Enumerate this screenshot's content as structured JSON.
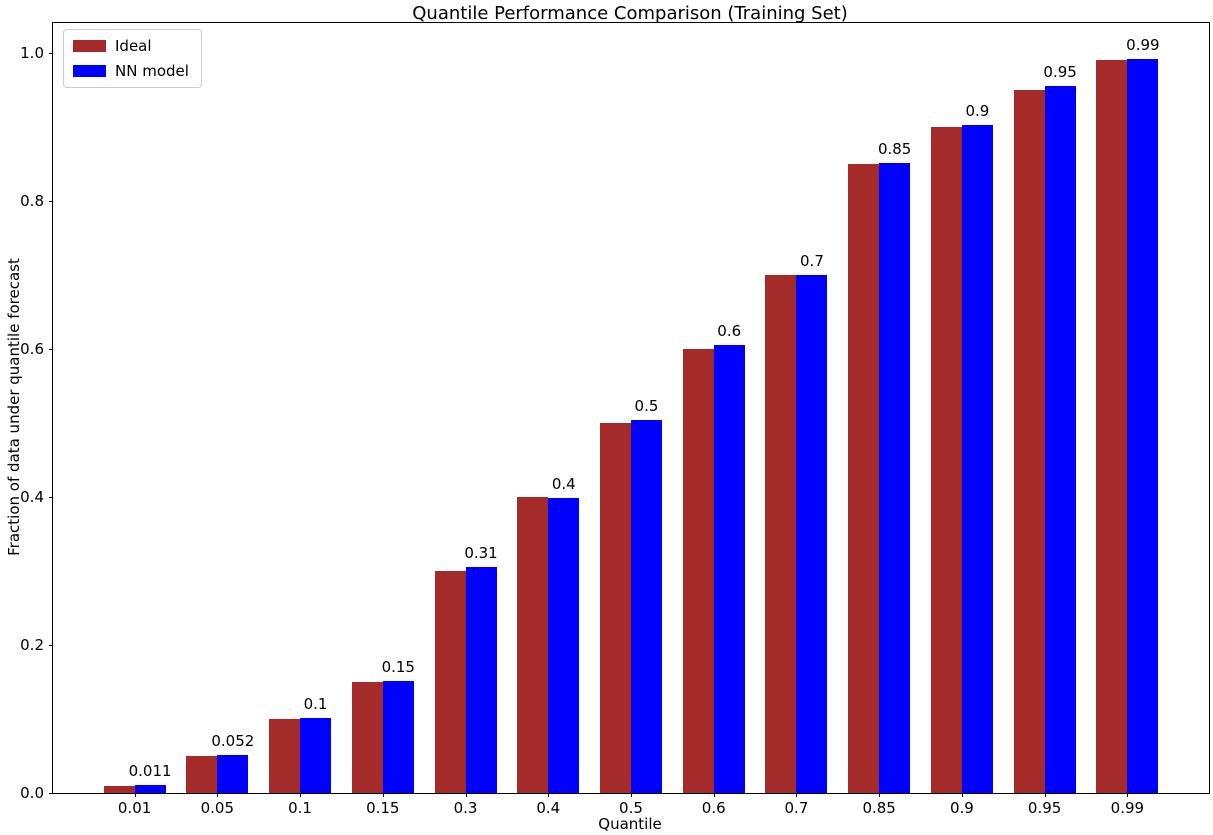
{
  "chart_data": {
    "type": "bar",
    "title": "Quantile Performance Comparison (Training Set)",
    "xlabel": "Quantile",
    "ylabel": "Fraction of data under quantile forecast",
    "categories": [
      "0.01",
      "0.05",
      "0.1",
      "0.15",
      "0.3",
      "0.4",
      "0.5",
      "0.6",
      "0.7",
      "0.85",
      "0.9",
      "0.95",
      "0.99"
    ],
    "series": [
      {
        "name": "Ideal",
        "color": "#a52a2a",
        "values": [
          0.01,
          0.05,
          0.1,
          0.15,
          0.3,
          0.4,
          0.5,
          0.6,
          0.7,
          0.85,
          0.9,
          0.95,
          0.99
        ]
      },
      {
        "name": "NN model",
        "color": "#0000ff",
        "values": [
          0.011,
          0.052,
          0.102,
          0.152,
          0.306,
          0.398,
          0.504,
          0.605,
          0.7,
          0.851,
          0.903,
          0.955,
          0.992
        ]
      }
    ],
    "bar_labels": [
      "0.011",
      "0.052",
      "0.1",
      "0.15",
      "0.31",
      "0.4",
      "0.5",
      "0.6",
      "0.7",
      "0.85",
      "0.9",
      "0.95",
      "0.99"
    ],
    "yticks": [
      "0.0",
      "0.2",
      "0.4",
      "0.6",
      "0.8",
      "1.0"
    ],
    "ylim": [
      0,
      1.04
    ],
    "grid": false,
    "legend": {
      "position": "upper-left"
    },
    "colors": {
      "axis": "#000000",
      "background": "#ffffff",
      "text": "#000000"
    }
  }
}
